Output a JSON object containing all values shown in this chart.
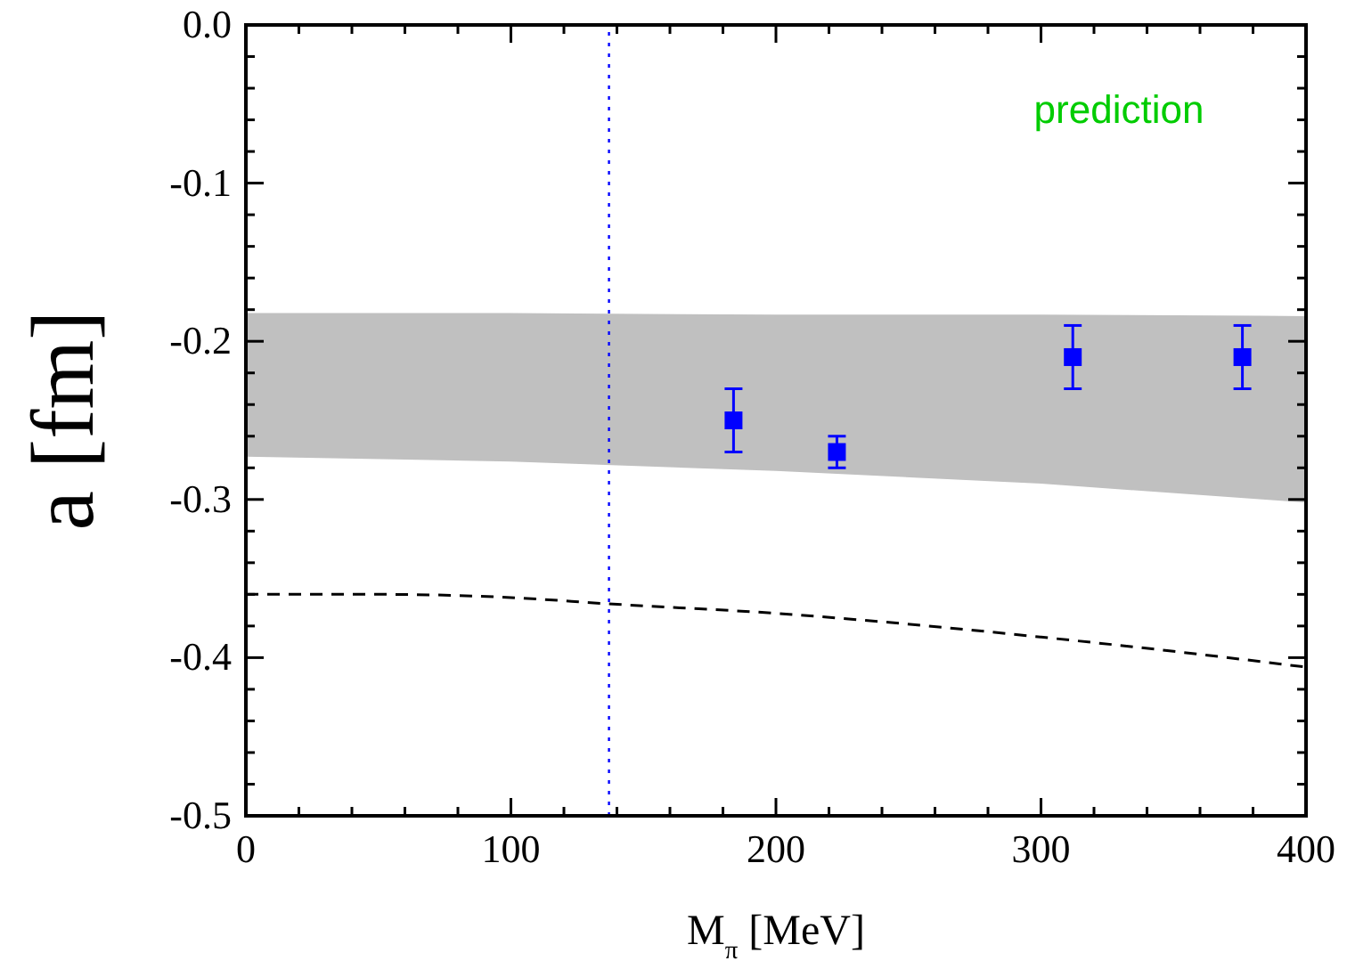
{
  "chart_data": {
    "type": "scatter",
    "xlabel": "M$_{π}$ [MeV]",
    "ylabel": "a [fm]",
    "xlim": [
      0,
      400
    ],
    "ylim": [
      -0.5,
      0
    ],
    "xticks": [
      0,
      {
        "value": 20,
        "label": null
      },
      {
        "value": 40,
        "label": null
      },
      {
        "value": 60,
        "label": null
      },
      {
        "value": 80,
        "label": null
      },
      100,
      {
        "value": 120,
        "label": null
      },
      {
        "value": 140,
        "label": null
      },
      {
        "value": 160,
        "label": null
      },
      {
        "value": 180,
        "label": null
      },
      200,
      {
        "value": 220,
        "label": null
      },
      {
        "value": 240,
        "label": null
      },
      {
        "value": 260,
        "label": null
      },
      {
        "value": 280,
        "label": null
      },
      300,
      {
        "value": 320,
        "label": null
      },
      {
        "value": 340,
        "label": null
      },
      {
        "value": 360,
        "label": null
      },
      {
        "value": 380,
        "label": null
      },
      400
    ],
    "yticks": [
      {
        "value": -0.5,
        "label": "-0.5"
      },
      {
        "value": -0.48,
        "label": null
      },
      {
        "value": -0.46,
        "label": null
      },
      {
        "value": -0.44,
        "label": null
      },
      {
        "value": -0.42,
        "label": null
      },
      {
        "value": -0.4,
        "label": "-0.4"
      },
      {
        "value": -0.38,
        "label": null
      },
      {
        "value": -0.36,
        "label": null
      },
      {
        "value": -0.34,
        "label": null
      },
      {
        "value": -0.32,
        "label": null
      },
      {
        "value": -0.3,
        "label": "-0.3"
      },
      {
        "value": -0.28,
        "label": null
      },
      {
        "value": -0.26,
        "label": null
      },
      {
        "value": -0.24,
        "label": null
      },
      {
        "value": -0.22,
        "label": null
      },
      {
        "value": -0.2,
        "label": "-0.2"
      },
      {
        "value": -0.18,
        "label": null
      },
      {
        "value": -0.16,
        "label": null
      },
      {
        "value": -0.14,
        "label": null
      },
      {
        "value": -0.12,
        "label": null
      },
      {
        "value": -0.1,
        "label": "-0.1"
      },
      {
        "value": -0.08,
        "label": null
      },
      {
        "value": -0.06,
        "label": null
      },
      {
        "value": -0.04,
        "label": null
      },
      {
        "value": -0.02,
        "label": null
      },
      {
        "value": 0,
        "label": "0.0"
      }
    ],
    "grid": false,
    "series": [
      {
        "type": "line",
        "color": "#c0c0c0",
        "x": [
          0,
          100,
          200,
          300,
          400
        ],
        "values": [
          -0.183,
          -0.183,
          -0.184,
          -0.184,
          -0.185
        ],
        "lower": [
          -0.273,
          -0.276,
          -0.282,
          -0.29,
          -0.302
        ],
        "upper": [
          -0.183,
          -0.183,
          -0.184,
          -0.184,
          -0.185
        ]
      },
      {
        "type": "line",
        "color": "#000000",
        "line_style": "dashed",
        "marker": "none",
        "x": [
          0,
          50,
          100,
          137,
          200,
          264,
          300,
          350,
          400
        ],
        "values": [
          -0.36,
          -0.36,
          -0.362,
          -0.366,
          -0.372,
          -0.381,
          -0.387,
          -0.396,
          -0.406
        ]
      },
      {
        "color": "#0000ff",
        "marker": "square",
        "x": [
          184,
          223,
          312,
          376
        ],
        "values": [
          -0.25,
          -0.27,
          -0.21,
          -0.21
        ],
        "errors": [
          0.02,
          0.01,
          0.02,
          0.02
        ]
      }
    ],
    "ref_lines": [
      {
        "axis": "x",
        "value": 137,
        "color": "#0000ff",
        "line_style": "dotted"
      }
    ],
    "annotations": [
      "prediction"
    ]
  }
}
